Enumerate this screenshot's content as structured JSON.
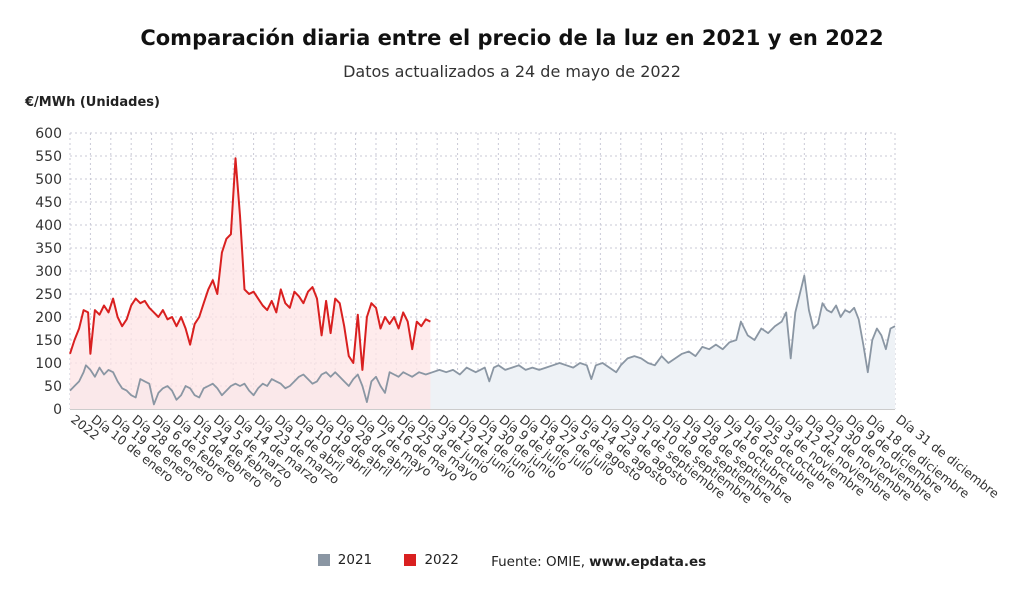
{
  "title": "Comparación diaria entre el precio de la luz en 2021 y en 2022",
  "subtitle": "Datos actualizados a 24 de mayo de 2022",
  "legend": {
    "source_label": "Fuente: OMIE,",
    "source_site": "www.epdata.es"
  },
  "chart_data": {
    "type": "area",
    "ylabel": "€/MWh (Unidades)",
    "ylim": [
      0,
      600
    ],
    "yticks": [
      0,
      50,
      100,
      150,
      200,
      250,
      300,
      350,
      400,
      450,
      500,
      550,
      600
    ],
    "xlim": [
      1,
      365
    ],
    "grid": true,
    "legend_position": "bottom",
    "x_ticks": [
      {
        "day": 1,
        "label": "2022"
      },
      {
        "day": 10,
        "label": "Día 10 de enero"
      },
      {
        "day": 19,
        "label": "Día 19 de enero"
      },
      {
        "day": 28,
        "label": "Día 28 de enero"
      },
      {
        "day": 37,
        "label": "Día 6 de febrero"
      },
      {
        "day": 46,
        "label": "Día 15 de febrero"
      },
      {
        "day": 55,
        "label": "Día 24 de febrero"
      },
      {
        "day": 64,
        "label": "Día 5 de marzo"
      },
      {
        "day": 73,
        "label": "Día 14 de marzo"
      },
      {
        "day": 82,
        "label": "Día 23 de marzo"
      },
      {
        "day": 91,
        "label": "Día 1 de abril"
      },
      {
        "day": 100,
        "label": "Día 10 de abril"
      },
      {
        "day": 109,
        "label": "Día 19 de abril"
      },
      {
        "day": 118,
        "label": "Día 28 de abril"
      },
      {
        "day": 127,
        "label": "Día 7 de mayo"
      },
      {
        "day": 136,
        "label": "Día 16 de mayo"
      },
      {
        "day": 145,
        "label": "Día 25 de mayo"
      },
      {
        "day": 154,
        "label": "Día 3 de junio"
      },
      {
        "day": 163,
        "label": "Día 12 de junio"
      },
      {
        "day": 172,
        "label": "Día 21 de junio"
      },
      {
        "day": 181,
        "label": "Día 30 de junio"
      },
      {
        "day": 190,
        "label": "Día 9 de julio"
      },
      {
        "day": 199,
        "label": "Día 18 de julio"
      },
      {
        "day": 208,
        "label": "Día 27 de julio"
      },
      {
        "day": 217,
        "label": "Día 5 de agosto"
      },
      {
        "day": 226,
        "label": "Día 14 de agosto"
      },
      {
        "day": 235,
        "label": "Día 23 de agosto"
      },
      {
        "day": 244,
        "label": "Día 1 de septiembre"
      },
      {
        "day": 253,
        "label": "Día 10 de septiembre"
      },
      {
        "day": 262,
        "label": "Día 19 de septiembre"
      },
      {
        "day": 271,
        "label": "Día 28 de septiembre"
      },
      {
        "day": 280,
        "label": "Día 7 de octubre"
      },
      {
        "day": 289,
        "label": "Día 16 de octubre"
      },
      {
        "day": 298,
        "label": "Día 25 de octubre"
      },
      {
        "day": 307,
        "label": "Día 3 de noviembre"
      },
      {
        "day": 316,
        "label": "Día 12 de noviembre"
      },
      {
        "day": 325,
        "label": "Día 21 de noviembre"
      },
      {
        "day": 334,
        "label": "Día 30 de noviembre"
      },
      {
        "day": 343,
        "label": "Día 9 de diciembre"
      },
      {
        "day": 352,
        "label": "Día 18 de diciembre"
      },
      {
        "day": 365,
        "label": "Día 31 de diciembre"
      }
    ],
    "series": [
      {
        "name": "2021",
        "color": "#8a96a3",
        "fill": "#eef2f6",
        "points": [
          [
            1,
            40
          ],
          [
            3,
            50
          ],
          [
            5,
            60
          ],
          [
            7,
            80
          ],
          [
            8,
            95
          ],
          [
            10,
            85
          ],
          [
            12,
            70
          ],
          [
            14,
            90
          ],
          [
            16,
            75
          ],
          [
            18,
            85
          ],
          [
            20,
            80
          ],
          [
            22,
            60
          ],
          [
            24,
            45
          ],
          [
            26,
            40
          ],
          [
            28,
            30
          ],
          [
            30,
            25
          ],
          [
            32,
            65
          ],
          [
            34,
            60
          ],
          [
            36,
            55
          ],
          [
            38,
            10
          ],
          [
            40,
            35
          ],
          [
            42,
            45
          ],
          [
            44,
            50
          ],
          [
            46,
            40
          ],
          [
            48,
            20
          ],
          [
            50,
            30
          ],
          [
            52,
            50
          ],
          [
            54,
            45
          ],
          [
            56,
            30
          ],
          [
            58,
            25
          ],
          [
            60,
            45
          ],
          [
            62,
            50
          ],
          [
            64,
            55
          ],
          [
            66,
            45
          ],
          [
            68,
            30
          ],
          [
            70,
            40
          ],
          [
            72,
            50
          ],
          [
            74,
            55
          ],
          [
            76,
            50
          ],
          [
            78,
            55
          ],
          [
            80,
            40
          ],
          [
            82,
            30
          ],
          [
            84,
            45
          ],
          [
            86,
            55
          ],
          [
            88,
            50
          ],
          [
            90,
            65
          ],
          [
            92,
            60
          ],
          [
            94,
            55
          ],
          [
            96,
            45
          ],
          [
            98,
            50
          ],
          [
            100,
            60
          ],
          [
            102,
            70
          ],
          [
            104,
            75
          ],
          [
            106,
            65
          ],
          [
            108,
            55
          ],
          [
            110,
            60
          ],
          [
            112,
            75
          ],
          [
            114,
            80
          ],
          [
            116,
            70
          ],
          [
            118,
            80
          ],
          [
            120,
            70
          ],
          [
            122,
            60
          ],
          [
            124,
            50
          ],
          [
            126,
            65
          ],
          [
            128,
            75
          ],
          [
            130,
            50
          ],
          [
            132,
            15
          ],
          [
            134,
            60
          ],
          [
            136,
            70
          ],
          [
            138,
            50
          ],
          [
            140,
            35
          ],
          [
            142,
            80
          ],
          [
            144,
            75
          ],
          [
            146,
            70
          ],
          [
            148,
            80
          ],
          [
            150,
            75
          ],
          [
            152,
            70
          ],
          [
            155,
            80
          ],
          [
            158,
            75
          ],
          [
            161,
            80
          ],
          [
            164,
            85
          ],
          [
            167,
            80
          ],
          [
            170,
            85
          ],
          [
            173,
            75
          ],
          [
            176,
            90
          ],
          [
            178,
            85
          ],
          [
            180,
            80
          ],
          [
            182,
            85
          ],
          [
            184,
            90
          ],
          [
            186,
            60
          ],
          [
            188,
            90
          ],
          [
            190,
            95
          ],
          [
            193,
            85
          ],
          [
            196,
            90
          ],
          [
            199,
            95
          ],
          [
            202,
            85
          ],
          [
            205,
            90
          ],
          [
            208,
            85
          ],
          [
            211,
            90
          ],
          [
            214,
            95
          ],
          [
            217,
            100
          ],
          [
            220,
            95
          ],
          [
            223,
            90
          ],
          [
            226,
            100
          ],
          [
            229,
            95
          ],
          [
            231,
            65
          ],
          [
            233,
            95
          ],
          [
            236,
            100
          ],
          [
            239,
            90
          ],
          [
            242,
            80
          ],
          [
            244,
            95
          ],
          [
            247,
            110
          ],
          [
            250,
            115
          ],
          [
            253,
            110
          ],
          [
            256,
            100
          ],
          [
            259,
            95
          ],
          [
            262,
            115
          ],
          [
            265,
            100
          ],
          [
            268,
            110
          ],
          [
            271,
            120
          ],
          [
            274,
            125
          ],
          [
            277,
            115
          ],
          [
            280,
            135
          ],
          [
            283,
            130
          ],
          [
            286,
            140
          ],
          [
            289,
            130
          ],
          [
            292,
            145
          ],
          [
            295,
            150
          ],
          [
            297,
            190
          ],
          [
            300,
            160
          ],
          [
            303,
            150
          ],
          [
            306,
            175
          ],
          [
            309,
            165
          ],
          [
            312,
            180
          ],
          [
            315,
            190
          ],
          [
            317,
            210
          ],
          [
            319,
            110
          ],
          [
            321,
            210
          ],
          [
            323,
            250
          ],
          [
            325,
            290
          ],
          [
            327,
            215
          ],
          [
            329,
            175
          ],
          [
            331,
            185
          ],
          [
            333,
            230
          ],
          [
            335,
            215
          ],
          [
            337,
            210
          ],
          [
            339,
            225
          ],
          [
            341,
            200
          ],
          [
            343,
            215
          ],
          [
            345,
            210
          ],
          [
            347,
            220
          ],
          [
            349,
            195
          ],
          [
            351,
            140
          ],
          [
            353,
            80
          ],
          [
            355,
            150
          ],
          [
            357,
            175
          ],
          [
            359,
            160
          ],
          [
            361,
            130
          ],
          [
            363,
            175
          ],
          [
            365,
            180
          ]
        ]
      },
      {
        "name": "2022",
        "color": "#d92020",
        "fill": "#fde4e6",
        "points": [
          [
            1,
            120
          ],
          [
            3,
            150
          ],
          [
            5,
            175
          ],
          [
            7,
            215
          ],
          [
            9,
            210
          ],
          [
            10,
            120
          ],
          [
            12,
            215
          ],
          [
            14,
            205
          ],
          [
            16,
            225
          ],
          [
            18,
            210
          ],
          [
            20,
            240
          ],
          [
            22,
            200
          ],
          [
            24,
            180
          ],
          [
            26,
            195
          ],
          [
            28,
            225
          ],
          [
            30,
            240
          ],
          [
            32,
            230
          ],
          [
            34,
            235
          ],
          [
            36,
            220
          ],
          [
            38,
            210
          ],
          [
            40,
            200
          ],
          [
            42,
            215
          ],
          [
            44,
            195
          ],
          [
            46,
            200
          ],
          [
            48,
            180
          ],
          [
            50,
            200
          ],
          [
            52,
            175
          ],
          [
            54,
            140
          ],
          [
            56,
            185
          ],
          [
            58,
            200
          ],
          [
            60,
            230
          ],
          [
            62,
            260
          ],
          [
            64,
            280
          ],
          [
            66,
            250
          ],
          [
            68,
            340
          ],
          [
            70,
            370
          ],
          [
            72,
            380
          ],
          [
            74,
            545
          ],
          [
            76,
            420
          ],
          [
            78,
            260
          ],
          [
            80,
            250
          ],
          [
            82,
            255
          ],
          [
            84,
            240
          ],
          [
            86,
            225
          ],
          [
            88,
            215
          ],
          [
            90,
            235
          ],
          [
            92,
            210
          ],
          [
            94,
            260
          ],
          [
            96,
            230
          ],
          [
            98,
            220
          ],
          [
            100,
            255
          ],
          [
            102,
            245
          ],
          [
            104,
            230
          ],
          [
            106,
            255
          ],
          [
            108,
            265
          ],
          [
            110,
            240
          ],
          [
            112,
            160
          ],
          [
            114,
            235
          ],
          [
            116,
            165
          ],
          [
            118,
            240
          ],
          [
            120,
            230
          ],
          [
            122,
            180
          ],
          [
            124,
            115
          ],
          [
            126,
            100
          ],
          [
            128,
            205
          ],
          [
            130,
            85
          ],
          [
            132,
            200
          ],
          [
            134,
            230
          ],
          [
            136,
            220
          ],
          [
            138,
            175
          ],
          [
            140,
            200
          ],
          [
            142,
            185
          ],
          [
            144,
            200
          ],
          [
            146,
            175
          ],
          [
            148,
            210
          ],
          [
            150,
            190
          ],
          [
            152,
            130
          ],
          [
            154,
            190
          ],
          [
            156,
            180
          ],
          [
            158,
            195
          ],
          [
            160,
            190
          ]
        ]
      }
    ]
  }
}
